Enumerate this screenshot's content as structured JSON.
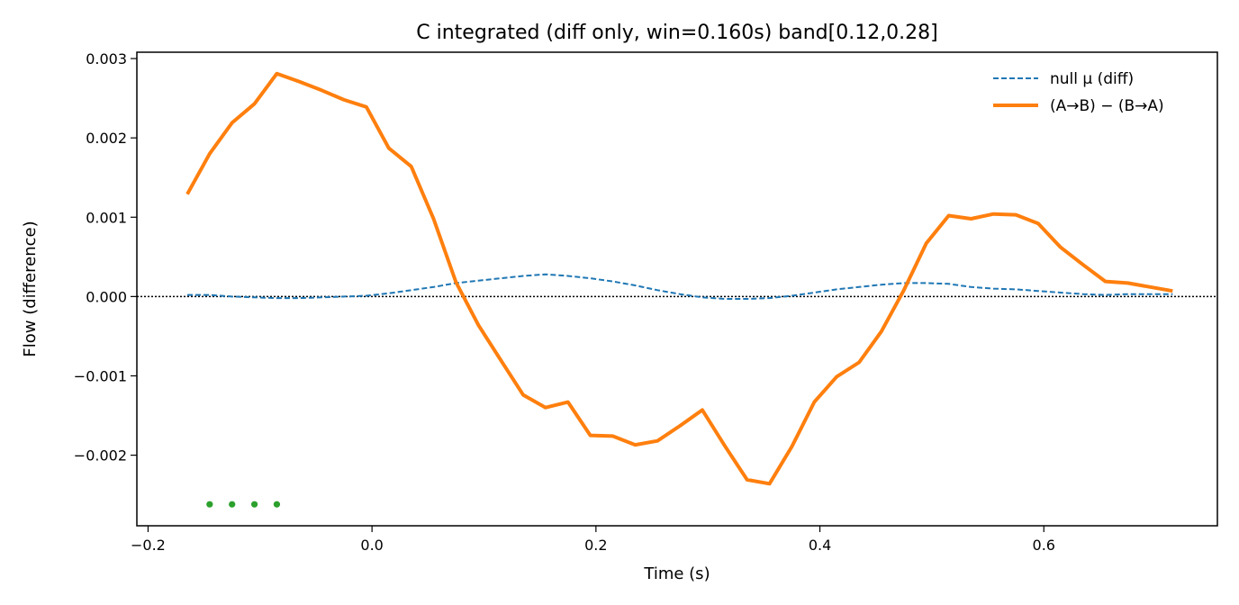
{
  "chart_data": {
    "type": "line",
    "title": "C integrated (diff only, win=0.160s)   band[0.12,0.28]",
    "xlabel": "Time (s)",
    "ylabel": "Flow (difference)",
    "xlim": [
      -0.21,
      0.755
    ],
    "ylim": [
      -0.00289,
      0.00308
    ],
    "xticks": [
      -0.2,
      0.0,
      0.2,
      0.4,
      0.6
    ],
    "xtick_labels": [
      "−0.2",
      "0.0",
      "0.2",
      "0.4",
      "0.6"
    ],
    "yticks": [
      -0.002,
      -0.001,
      0.0,
      0.001,
      0.002,
      0.003
    ],
    "ytick_labels": [
      "−0.002",
      "−0.001",
      "0.000",
      "0.001",
      "0.002",
      "0.003"
    ],
    "grid": false,
    "legend_position": "top-right",
    "reference_line": {
      "y": 0.0,
      "style": "dotted",
      "color": "#000000"
    },
    "series": [
      {
        "name": "null μ (diff)",
        "style": "dashed",
        "color": "#1f77b4",
        "x": [
          -0.165,
          -0.145,
          -0.125,
          -0.105,
          -0.085,
          -0.065,
          -0.045,
          -0.025,
          -0.005,
          0.015,
          0.035,
          0.055,
          0.075,
          0.095,
          0.115,
          0.135,
          0.155,
          0.175,
          0.195,
          0.215,
          0.235,
          0.255,
          0.275,
          0.295,
          0.315,
          0.335,
          0.355,
          0.375,
          0.395,
          0.415,
          0.435,
          0.455,
          0.475,
          0.495,
          0.515,
          0.535,
          0.555,
          0.575,
          0.595,
          0.615,
          0.635,
          0.655,
          0.675,
          0.695,
          0.715
        ],
        "y": [
          2e-05,
          2e-05,
          0.0,
          -1e-05,
          -2e-05,
          -2e-05,
          -1e-05,
          0.0,
          1e-05,
          4e-05,
          8e-05,
          0.00012,
          0.00017,
          0.0002,
          0.00023,
          0.00026,
          0.00028,
          0.00026,
          0.00023,
          0.00019,
          0.00014,
          8e-05,
          3e-05,
          -1e-05,
          -3e-05,
          -3e-05,
          -2e-05,
          1e-05,
          5e-05,
          9e-05,
          0.00012,
          0.00015,
          0.00017,
          0.00017,
          0.00016,
          0.00012,
          0.0001,
          9e-05,
          7e-05,
          5e-05,
          3e-05,
          2e-05,
          3e-05,
          3e-05,
          3e-05
        ]
      },
      {
        "name": "(A→B) − (B→A)",
        "style": "solid",
        "color": "#ff7f0e",
        "x": [
          -0.165,
          -0.145,
          -0.125,
          -0.105,
          -0.085,
          -0.065,
          -0.045,
          -0.025,
          -0.005,
          0.015,
          0.035,
          0.055,
          0.075,
          0.095,
          0.115,
          0.135,
          0.155,
          0.175,
          0.195,
          0.215,
          0.235,
          0.255,
          0.275,
          0.295,
          0.315,
          0.335,
          0.355,
          0.375,
          0.395,
          0.415,
          0.435,
          0.455,
          0.475,
          0.495,
          0.515,
          0.535,
          0.555,
          0.575,
          0.595,
          0.615,
          0.635,
          0.655,
          0.675,
          0.695,
          0.715
        ],
        "y": [
          0.00129,
          0.0018,
          0.00219,
          0.00243,
          0.00281,
          0.00271,
          0.0026,
          0.00248,
          0.00239,
          0.00187,
          0.00164,
          0.00098,
          0.00018,
          -0.00036,
          -0.0008,
          -0.00124,
          -0.0014,
          -0.00133,
          -0.00175,
          -0.00176,
          -0.00187,
          -0.00182,
          -0.00163,
          -0.00143,
          -0.00188,
          -0.00231,
          -0.00236,
          -0.00189,
          -0.00133,
          -0.00101,
          -0.00083,
          -0.00044,
          8e-05,
          0.00067,
          0.00102,
          0.00098,
          0.00104,
          0.00103,
          0.00092,
          0.00062,
          0.0004,
          0.00019,
          0.00017,
          0.00012,
          7e-05
        ]
      }
    ],
    "markers": {
      "color": "#2ca02c",
      "x": [
        -0.145,
        -0.125,
        -0.105,
        -0.085
      ],
      "y": [
        -0.00262,
        -0.00262,
        -0.00262,
        -0.00262
      ]
    }
  }
}
